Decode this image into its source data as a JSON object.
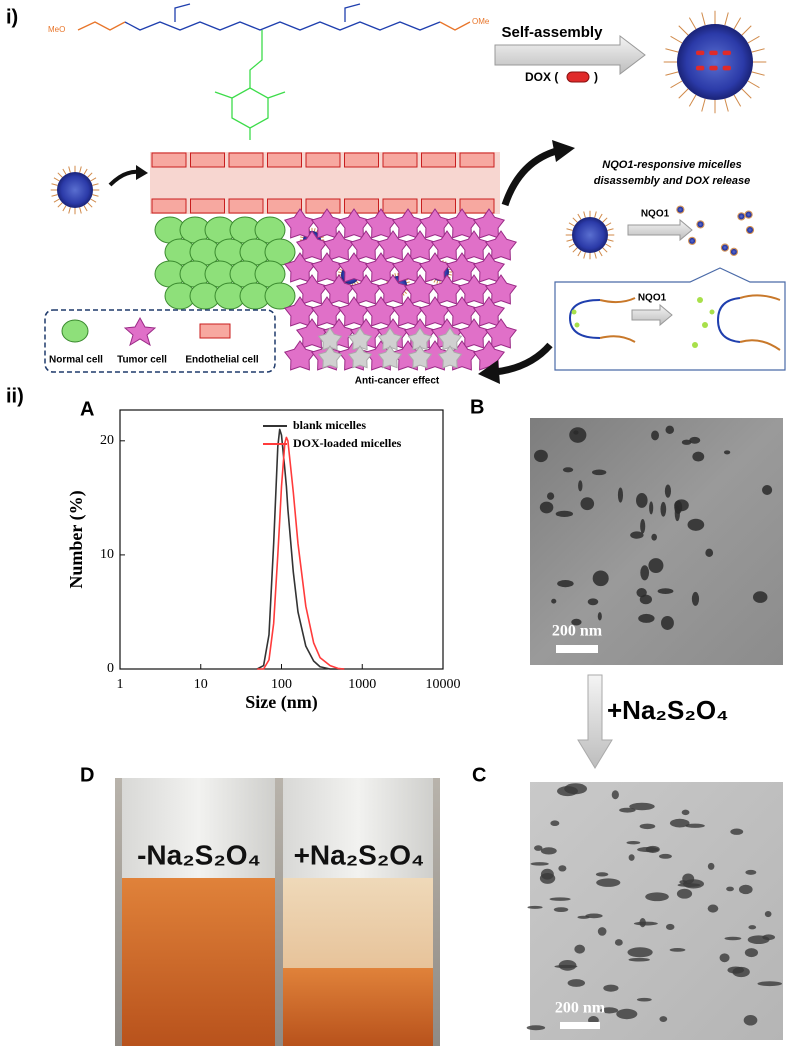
{
  "panel_labels": {
    "i": "i)",
    "ii": "ii)",
    "A": "A",
    "B": "B",
    "C": "C",
    "D": "D"
  },
  "scheme": {
    "chem_left": "MeO",
    "chem_right": "OMe",
    "self_assembly": "Self-assembly",
    "dox_open": "DOX (",
    "dox_close": ")",
    "release_title": [
      "NQO1-responsive micelles",
      "disassembly and DOX release"
    ],
    "nqo1_top": "NQO1",
    "nqo1_inset": "NQO1",
    "legend": [
      "Normal cell",
      "Tumor cell",
      "Endothelial cell"
    ],
    "effect": "Anti-cancer effect"
  },
  "tem": {
    "scale_b": "200 nm",
    "scale_c": "200 nm",
    "treatment": "+Na₂S₂O₄"
  },
  "photo": {
    "left": "-Na₂S₂O₄",
    "right": "+Na₂S₂O₄"
  },
  "chart_data": {
    "type": "line",
    "xlabel": "Size (nm)",
    "ylabel": "Number (%)",
    "log_x": true,
    "legend": "upper right",
    "x": [
      50,
      60,
      70,
      80,
      90,
      95,
      100,
      110,
      115,
      120,
      140,
      160,
      200,
      250,
      300,
      400,
      500,
      600
    ],
    "series": [
      {
        "name": "blank micelles",
        "color": "#333333",
        "values": [
          0,
          0.3,
          3,
          11,
          19.5,
          21,
          20.5,
          17.5,
          16,
          14,
          8.5,
          5,
          2,
          0.7,
          0.2,
          0,
          0,
          0
        ]
      },
      {
        "name": "DOX-loaded micelles",
        "color": "#ff3b3b",
        "values": [
          0,
          0,
          0.8,
          4,
          10,
          13,
          16,
          19.8,
          20.3,
          20,
          15.5,
          11,
          5.5,
          2.3,
          1,
          0.3,
          0.05,
          0
        ]
      }
    ],
    "xlim": [
      1,
      10000
    ],
    "ylim": [
      0,
      22.7
    ],
    "xticks": [
      1,
      10,
      100,
      1000,
      10000
    ],
    "yticks": [
      0,
      10,
      20
    ]
  }
}
